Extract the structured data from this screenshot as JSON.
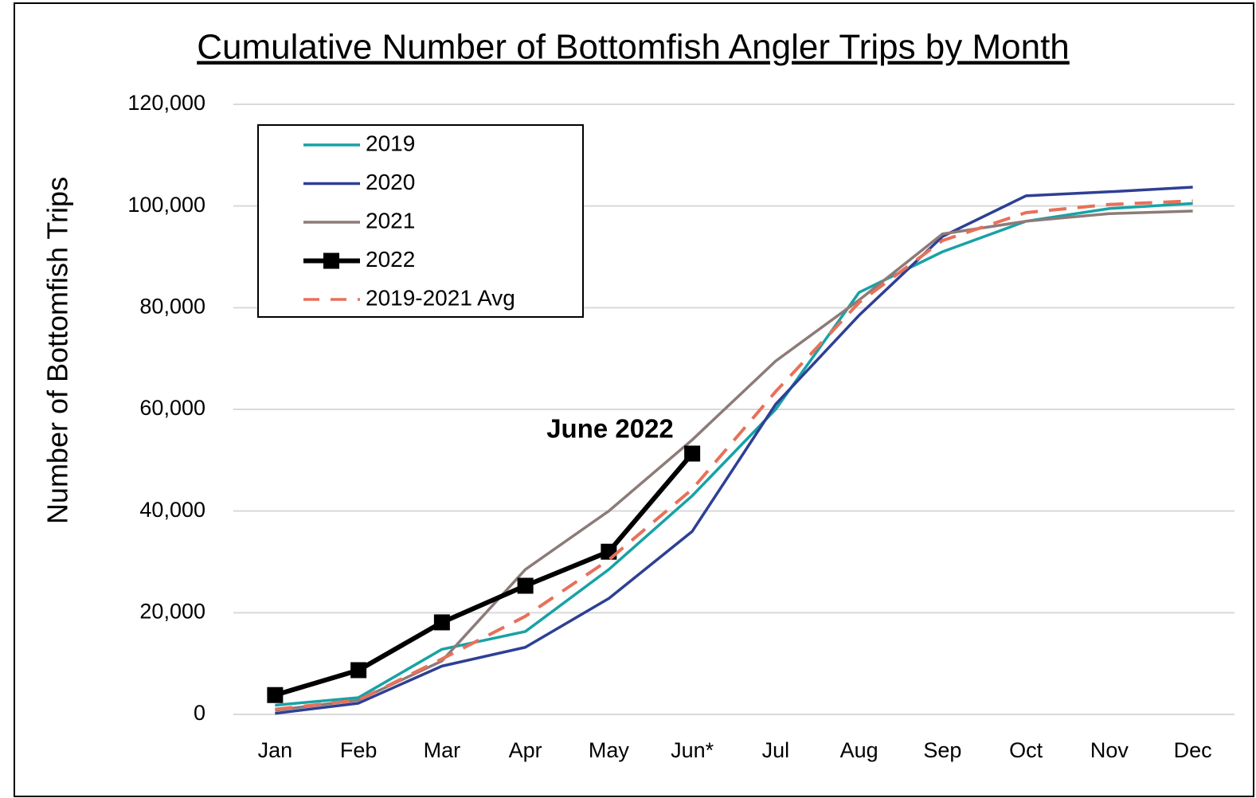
{
  "chart_data": {
    "type": "line",
    "title": "Cumulative Number of Bottomfish Angler Trips by Month",
    "y_label": "Number of Bottomfish Trips",
    "annotation": "June 2022",
    "categories": [
      "Jan",
      "Feb",
      "Mar",
      "Apr",
      "May",
      "Jun*",
      "Jul",
      "Aug",
      "Sep",
      "Oct",
      "Nov",
      "Dec"
    ],
    "series": [
      {
        "name": "2019",
        "color": "#17a2a6",
        "values": [
          1800,
          3300,
          12800,
          16300,
          28500,
          43000,
          60000,
          83000,
          91000,
          97000,
          99500,
          100500
        ]
      },
      {
        "name": "2020",
        "color": "#2e3f94",
        "values": [
          200,
          2200,
          9500,
          13200,
          22800,
          36000,
          61000,
          78500,
          94000,
          102000,
          102800,
          103700
        ]
      },
      {
        "name": "2021",
        "color": "#8c7b78",
        "values": [
          800,
          2800,
          10500,
          28500,
          40000,
          54000,
          69500,
          81500,
          94500,
          97000,
          98500,
          99000
        ]
      },
      {
        "name": "2022",
        "color": "#000000",
        "marker": "square",
        "values": [
          3800,
          8700,
          18100,
          25300,
          32000,
          51300,
          null,
          null,
          null,
          null,
          null,
          null
        ]
      },
      {
        "name": "2019-2021 Avg",
        "color": "#e8705a",
        "dashed": true,
        "values": [
          1000,
          2800,
          10900,
          19300,
          30400,
          44300,
          63500,
          81000,
          93200,
          98700,
          100300,
          101000
        ]
      }
    ],
    "ylim": [
      0,
      120000
    ],
    "yticks": [
      0,
      {
        "value": 20000,
        "label": "20,000"
      },
      {
        "value": 40000,
        "label": "40,000"
      },
      {
        "value": 60000,
        "label": "60,000"
      },
      {
        "value": 80000,
        "label": "80,000"
      },
      {
        "value": 100000,
        "label": "100,000"
      },
      {
        "value": 120000,
        "label": "120,000"
      }
    ],
    "grid": true,
    "legend": "upper left"
  }
}
